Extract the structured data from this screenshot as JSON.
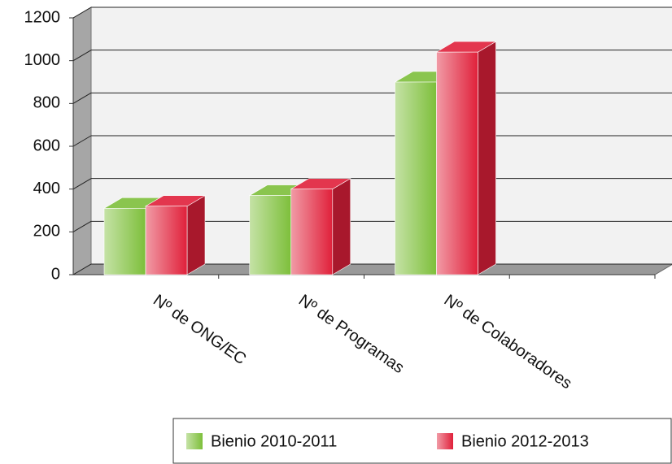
{
  "chart_data": {
    "type": "bar3d",
    "categories": [
      "Nº de ONG/EC",
      "Nº de Programas",
      "Nº de Colaboradores",
      null
    ],
    "series": [
      {
        "name": "Bienio 2010-2011",
        "color": "#7dbf3a",
        "values": [
          310,
          370,
          900,
          null
        ]
      },
      {
        "name": "Bienio 2012-2013",
        "color": "#e0203a",
        "values": [
          320,
          400,
          1040,
          null
        ]
      }
    ],
    "ylim": [
      0,
      1200
    ],
    "yticks": [
      0,
      200,
      400,
      600,
      800,
      1000,
      1200
    ],
    "grid": true
  }
}
